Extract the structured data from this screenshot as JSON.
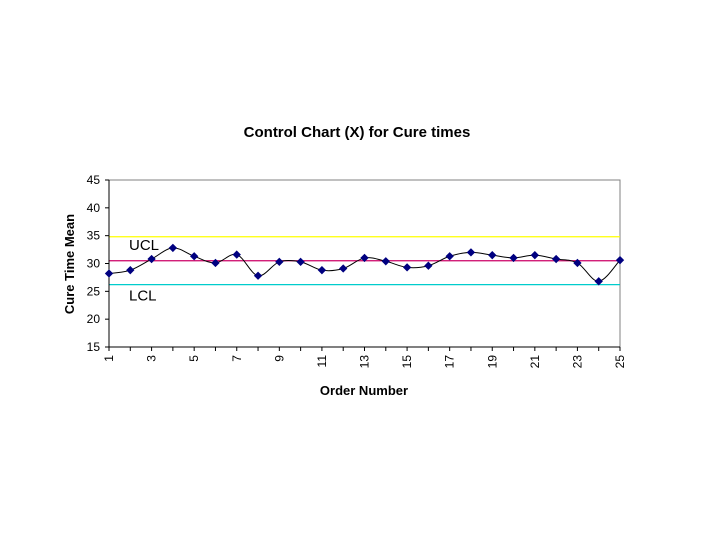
{
  "chart_data": {
    "type": "line",
    "title": "Control Chart (X) for Cure times",
    "xlabel": "Order Number",
    "ylabel": "Cure Time Mean",
    "x": [
      1,
      2,
      3,
      4,
      5,
      6,
      7,
      8,
      9,
      10,
      11,
      12,
      13,
      14,
      15,
      16,
      17,
      18,
      19,
      20,
      21,
      22,
      23,
      24,
      25
    ],
    "x_tick_labels": [
      "1",
      "3",
      "5",
      "7",
      "9",
      "11",
      "13",
      "15",
      "17",
      "19",
      "21",
      "23",
      "25"
    ],
    "y_tick_labels": [
      "15",
      "20",
      "25",
      "30",
      "35",
      "40",
      "45"
    ],
    "xlim": [
      1,
      25
    ],
    "ylim": [
      15,
      45
    ],
    "grid": false,
    "series": [
      {
        "values": [
          28.2,
          28.8,
          30.8,
          32.8,
          31.3,
          30.1,
          31.6,
          27.8,
          30.3,
          30.3,
          28.8,
          29.1,
          31.0,
          30.4,
          29.3,
          29.6,
          31.3,
          32.0,
          31.5,
          31.0,
          31.5,
          30.8,
          30.1,
          26.8,
          30.6
        ],
        "color": "#000080"
      }
    ],
    "control_lines": [
      {
        "label": "UCL",
        "value": 34.8,
        "color": "#ffff00"
      },
      {
        "label": "",
        "value": 30.5,
        "color": "#cc0066"
      },
      {
        "label": "LCL",
        "value": 26.2,
        "color": "#00cccc"
      }
    ]
  }
}
